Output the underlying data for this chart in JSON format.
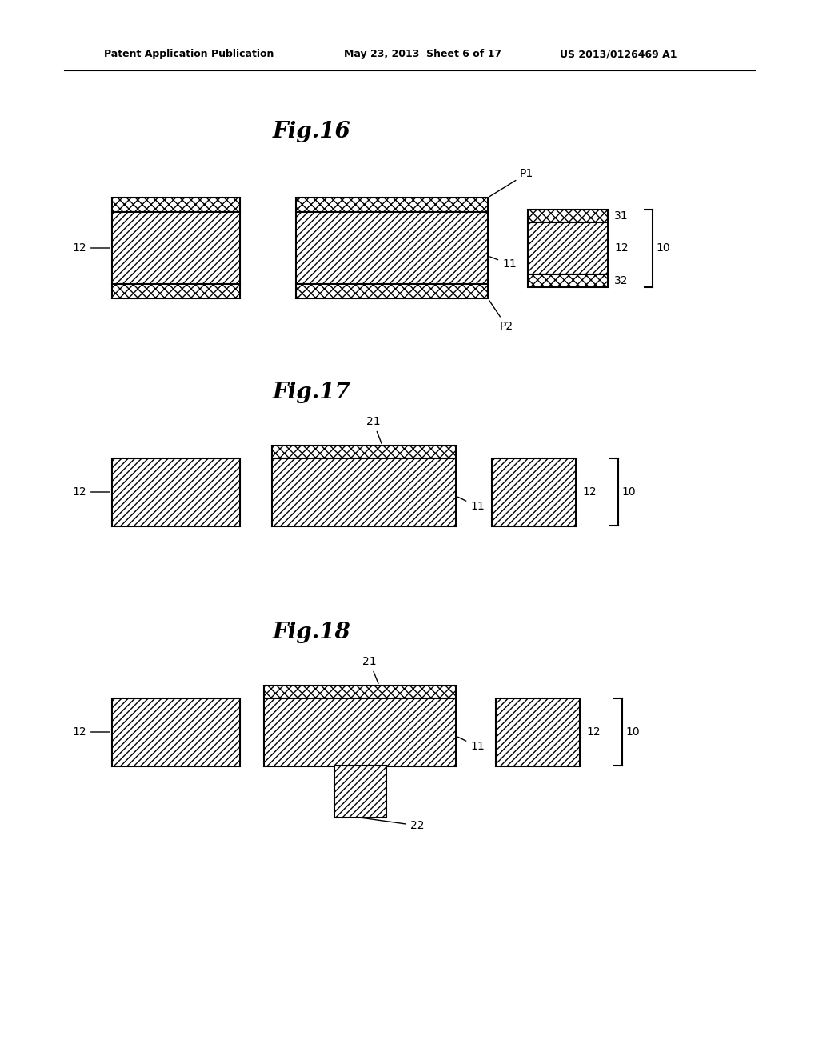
{
  "bg_color": "#ffffff",
  "header_left": "Patent Application Publication",
  "header_mid": "May 23, 2013  Sheet 6 of 17",
  "header_right": "US 2013/0126469 A1",
  "fig16_title": "Fig.16",
  "fig17_title": "Fig.17",
  "fig18_title": "Fig.18"
}
